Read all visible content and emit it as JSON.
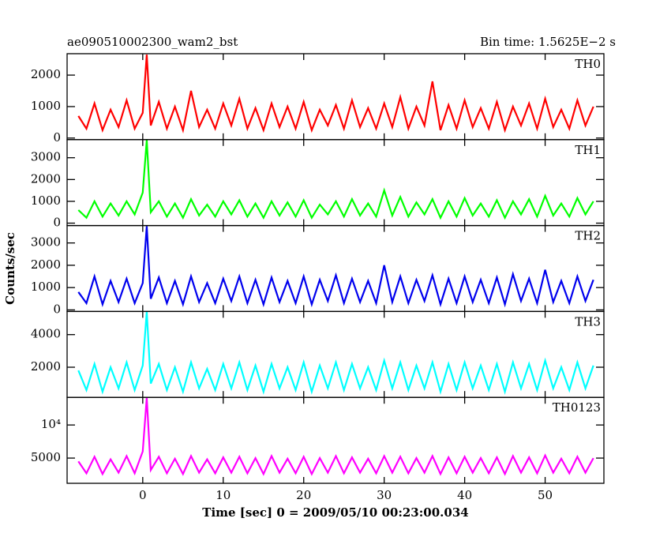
{
  "chart_data": {
    "type": "line",
    "title": "ae090510002300_wam2_bst",
    "subtitle": "Bin time: 1.5625E−2 s",
    "x_label": "Time [sec] 0 = 2009/05/10 00:23:00.034",
    "y_label": "Counts/sec",
    "xlim": [
      -9.4,
      57.3
    ],
    "xticks": [
      0,
      10,
      20,
      30,
      40,
      50
    ],
    "x": [
      -8,
      -7,
      -6,
      -5,
      -4,
      -3,
      -2,
      -1,
      0,
      0.5,
      1,
      2,
      3,
      4,
      5,
      6,
      7,
      8,
      9,
      10,
      11,
      12,
      13,
      14,
      15,
      16,
      17,
      18,
      19,
      20,
      21,
      22,
      23,
      24,
      25,
      26,
      27,
      28,
      29,
      30,
      31,
      32,
      33,
      34,
      35,
      36,
      37,
      38,
      39,
      40,
      41,
      42,
      43,
      44,
      45,
      46,
      47,
      48,
      49,
      50,
      51,
      52,
      53,
      54,
      55,
      56
    ],
    "series": [
      {
        "name": "TH0",
        "color": "#ff0000",
        "ylim": [
          -50,
          2680
        ],
        "yticks": [
          0,
          1000,
          2000
        ],
        "values": [
          700,
          300,
          1100,
          250,
          900,
          350,
          1200,
          300,
          800,
          2650,
          400,
          1150,
          300,
          1000,
          250,
          1500,
          350,
          900,
          300,
          1100,
          400,
          1250,
          300,
          950,
          250,
          1100,
          350,
          1000,
          300,
          1150,
          250,
          900,
          400,
          1050,
          300,
          1200,
          350,
          950,
          300,
          1100,
          350,
          1300,
          300,
          1000,
          400,
          1800,
          250,
          1050,
          300,
          1200,
          350,
          950,
          300,
          1150,
          250,
          1000,
          400,
          1100,
          300,
          1250,
          350,
          900,
          300,
          1200,
          400,
          1000
        ]
      },
      {
        "name": "TH1",
        "color": "#00ff00",
        "ylim": [
          -110,
          3830
        ],
        "yticks": [
          0,
          1000,
          2000,
          3000
        ],
        "values": [
          600,
          250,
          1000,
          300,
          900,
          350,
          1000,
          400,
          1400,
          3800,
          500,
          1000,
          300,
          900,
          250,
          1100,
          350,
          850,
          300,
          1000,
          400,
          1050,
          300,
          900,
          250,
          1000,
          350,
          950,
          300,
          1050,
          250,
          850,
          400,
          1000,
          300,
          1100,
          350,
          900,
          300,
          1500,
          350,
          1200,
          300,
          950,
          400,
          1100,
          250,
          1000,
          300,
          1150,
          350,
          900,
          300,
          1050,
          250,
          1000,
          400,
          1100,
          300,
          1250,
          350,
          900,
          300,
          1150,
          400,
          1000
        ]
      },
      {
        "name": "TH2",
        "color": "#0000ee",
        "ylim": [
          -70,
          3780
        ],
        "yticks": [
          0,
          1000,
          2000,
          3000
        ],
        "values": [
          800,
          300,
          1500,
          250,
          1300,
          350,
          1400,
          300,
          1200,
          3750,
          500,
          1450,
          300,
          1300,
          250,
          1500,
          350,
          1200,
          300,
          1400,
          400,
          1500,
          300,
          1350,
          250,
          1450,
          350,
          1300,
          300,
          1500,
          250,
          1350,
          400,
          1550,
          300,
          1400,
          350,
          1300,
          300,
          2000,
          350,
          1500,
          300,
          1350,
          400,
          1550,
          250,
          1400,
          300,
          1500,
          350,
          1350,
          300,
          1450,
          250,
          1600,
          400,
          1400,
          300,
          1800,
          350,
          1300,
          300,
          1500,
          400,
          1350
        ]
      },
      {
        "name": "TH3",
        "color": "#00ffff",
        "ylim": [
          150,
          5420
        ],
        "yticks": [
          2000,
          4000
        ],
        "values": [
          1800,
          600,
          2200,
          500,
          2000,
          700,
          2300,
          600,
          2100,
          5400,
          1000,
          2200,
          600,
          2000,
          500,
          2300,
          700,
          1900,
          600,
          2200,
          700,
          2300,
          600,
          2100,
          500,
          2200,
          700,
          2000,
          600,
          2300,
          500,
          2100,
          700,
          2300,
          600,
          2200,
          700,
          2000,
          600,
          2400,
          700,
          2300,
          600,
          2100,
          700,
          2300,
          500,
          2200,
          600,
          2300,
          700,
          2100,
          600,
          2200,
          500,
          2300,
          700,
          2200,
          600,
          2400,
          700,
          2000,
          600,
          2300,
          700,
          2100
        ]
      },
      {
        "name": "TH0123",
        "color": "#ff00ff",
        "ylim": [
          1190,
          14170
        ],
        "yticks": [
          5000,
          {
            "value": 10000,
            "label": "10⁴"
          }
        ],
        "values": [
          4500,
          2700,
          5200,
          2600,
          4800,
          2800,
          5300,
          2700,
          6000,
          14100,
          3200,
          5200,
          2700,
          4900,
          2600,
          5300,
          2800,
          4800,
          2700,
          5100,
          2800,
          5200,
          2700,
          5000,
          2600,
          5300,
          2800,
          4900,
          2700,
          5200,
          2600,
          5000,
          2800,
          5300,
          2700,
          5100,
          2800,
          4900,
          2700,
          5300,
          2800,
          5200,
          2700,
          5000,
          2800,
          5300,
          2600,
          5100,
          2700,
          5200,
          2800,
          5000,
          2700,
          5100,
          2600,
          5300,
          2800,
          5100,
          2700,
          5400,
          2800,
          4900,
          2700,
          5200,
          2800,
          5000
        ]
      }
    ]
  }
}
